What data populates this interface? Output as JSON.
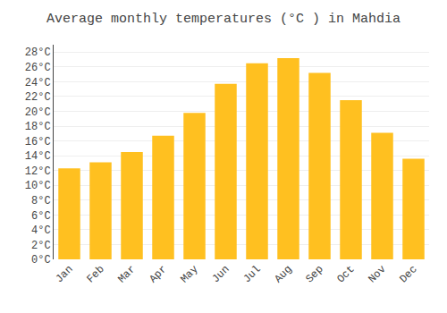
{
  "chart_data": {
    "type": "bar",
    "title": "Average monthly temperatures (°C ) in Mahdia",
    "categories": [
      "Jan",
      "Feb",
      "Mar",
      "Apr",
      "May",
      "Jun",
      "Jul",
      "Aug",
      "Sep",
      "Oct",
      "Nov",
      "Dec"
    ],
    "values": [
      12.3,
      13.1,
      14.5,
      16.7,
      19.8,
      23.7,
      26.5,
      27.2,
      25.2,
      21.5,
      17.1,
      13.6
    ],
    "color": "#FFC020",
    "ylim": [
      0,
      29
    ],
    "yticks": [
      {
        "value": 0,
        "label": "0°C"
      },
      {
        "value": 2,
        "label": "2°C"
      },
      {
        "value": 4,
        "label": "4°C"
      },
      {
        "value": 6,
        "label": "6°C"
      },
      {
        "value": 8,
        "label": "8°C"
      },
      {
        "value": 10,
        "label": "10°C"
      },
      {
        "value": 12,
        "label": "12°C"
      },
      {
        "value": 14,
        "label": "14°C"
      },
      {
        "value": 16,
        "label": "16°C"
      },
      {
        "value": 18,
        "label": "18°C"
      },
      {
        "value": 20,
        "label": "20°C"
      },
      {
        "value": 22,
        "label": "22°C"
      },
      {
        "value": 24,
        "label": "24°C"
      },
      {
        "value": 26,
        "label": "26°C"
      },
      {
        "value": 28,
        "label": "28°C"
      }
    ],
    "grid": true
  }
}
